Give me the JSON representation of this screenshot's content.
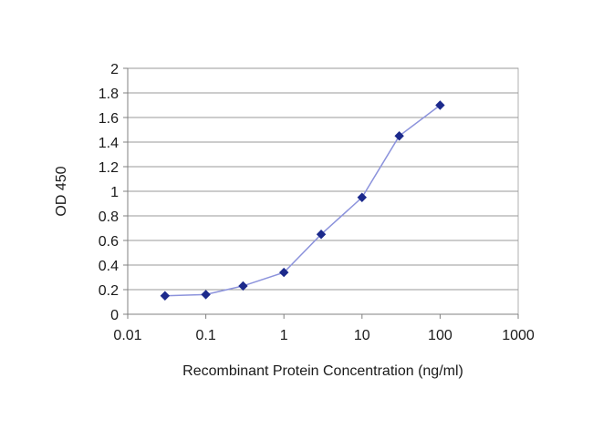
{
  "chart_data": {
    "type": "line",
    "title": "",
    "xlabel": "Recombinant Protein Concentration (ng/ml)",
    "ylabel": "OD 450",
    "x_scale": "log",
    "xlim": [
      0.01,
      1000
    ],
    "ylim": [
      0,
      2
    ],
    "grid": "horizontal",
    "legend": "none",
    "x_ticks": [
      "0.01",
      "0.1",
      "1",
      "10",
      "100",
      "1000"
    ],
    "y_ticks": [
      "0",
      "0.2",
      "0.4",
      "0.6",
      "0.8",
      "1",
      "1.2",
      "1.4",
      "1.6",
      "1.8",
      "2"
    ],
    "series": [
      {
        "x": [
          0.03,
          0.1,
          0.3,
          1,
          3,
          10,
          30,
          100
        ],
        "y": [
          0.15,
          0.16,
          0.23,
          0.34,
          0.65,
          0.95,
          1.45,
          1.7
        ]
      }
    ],
    "colors": {
      "line": "#8c93dc",
      "marker": "#1c2a8c",
      "grid": "#9a9a9a",
      "plot_border": "#b0b0b0",
      "axis": "#808080"
    }
  }
}
